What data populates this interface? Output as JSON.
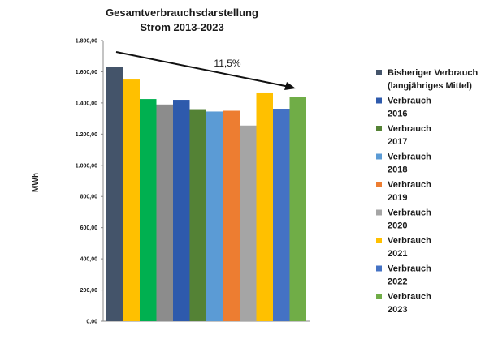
{
  "chart_data": {
    "type": "bar",
    "title": "Gesamtverbrauchsdarstellung",
    "subtitle": "Strom 2013-2023",
    "ylabel": "MWh",
    "ylim": [
      0,
      1800
    ],
    "yticks": [
      "0,00",
      "200,00",
      "400,00",
      "600,00",
      "800,00",
      "1.000,00",
      "1.200,00",
      "1.400,00",
      "1.600,00",
      "1.800,00"
    ],
    "grid": false,
    "legend_position": "right",
    "annotation": "11,5%",
    "bars": [
      {
        "value": 1630,
        "color": "#44546a"
      },
      {
        "value": 1550,
        "color": "#ffc000"
      },
      {
        "value": 1425,
        "color": "#00b050"
      },
      {
        "value": 1390,
        "color": "#8c8c8c"
      },
      {
        "value": 1420,
        "color": "#2e5aac"
      },
      {
        "value": 1355,
        "color": "#548235"
      },
      {
        "value": 1345,
        "color": "#5b9bd5"
      },
      {
        "value": 1350,
        "color": "#ed7d31"
      },
      {
        "value": 1255,
        "color": "#a5a5a5"
      },
      {
        "value": 1462,
        "color": "#ffc000"
      },
      {
        "value": 1360,
        "color": "#4472c4"
      },
      {
        "value": 1440,
        "color": "#70ad47"
      }
    ],
    "legend": [
      {
        "line1": "Bisheriger Verbrauch",
        "line2": "(langjähriges Mittel)",
        "color": "#44546a"
      },
      {
        "line1": "Verbrauch",
        "line2": "2016",
        "color": "#2e5aac"
      },
      {
        "line1": "Verbrauch",
        "line2": "2017",
        "color": "#548235"
      },
      {
        "line1": "Verbrauch",
        "line2": "2018",
        "color": "#5b9bd5"
      },
      {
        "line1": "Verbrauch",
        "line2": "2019",
        "color": "#ed7d31"
      },
      {
        "line1": "Verbrauch",
        "line2": "2020",
        "color": "#a5a5a5"
      },
      {
        "line1": "Verbrauch",
        "line2": "2021",
        "color": "#ffc000"
      },
      {
        "line1": "Verbrauch",
        "line2": "2022",
        "color": "#4472c4"
      },
      {
        "line1": "Verbrauch",
        "line2": "2023",
        "color": "#70ad47"
      }
    ]
  }
}
